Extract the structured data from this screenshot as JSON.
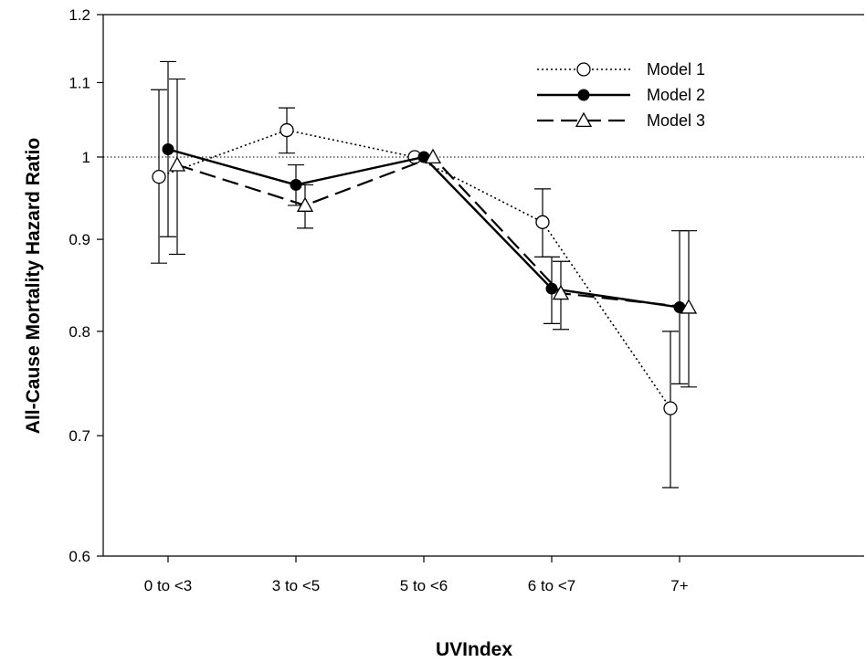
{
  "chart_data": {
    "type": "line",
    "xlabel": "UVIndex",
    "ylabel": "All-Cause Mortality Hazard Ratio",
    "y_scale": "log",
    "ylim": [
      0.6,
      1.2
    ],
    "yticks": [
      "0.6",
      "0.7",
      "0.8",
      "0.9",
      "1",
      "1.1",
      "1.2"
    ],
    "categories": [
      "0 to <3",
      "3 to <5",
      "5 to <6",
      "6 to <7",
      "7+"
    ],
    "reference_line": {
      "y": 1.0,
      "style": "dotted"
    },
    "legend_position": "top-right",
    "series": [
      {
        "name": "Model 1",
        "line_style": "dotted",
        "marker": "open-circle",
        "values": [
          0.975,
          1.035,
          1.0,
          0.92,
          0.725
        ],
        "ci_lower": [
          0.873,
          1.005,
          1.0,
          0.88,
          0.655
        ],
        "ci_upper": [
          1.09,
          1.065,
          1.0,
          0.96,
          0.8
        ]
      },
      {
        "name": "Model 2",
        "line_style": "solid",
        "marker": "filled-circle",
        "values": [
          1.01,
          0.965,
          1.0,
          0.845,
          0.825
        ],
        "ci_lower": [
          0.903,
          0.94,
          1.0,
          0.808,
          0.748
        ],
        "ci_upper": [
          1.13,
          0.99,
          1.0,
          0.88,
          0.91
        ]
      },
      {
        "name": "Model 3",
        "line_style": "dashed",
        "marker": "open-triangle",
        "values": [
          0.99,
          0.94,
          1.0,
          0.84,
          0.825
        ],
        "ci_lower": [
          0.883,
          0.913,
          1.0,
          0.802,
          0.745
        ],
        "ci_upper": [
          1.105,
          0.965,
          1.0,
          0.875,
          0.91
        ]
      }
    ]
  }
}
